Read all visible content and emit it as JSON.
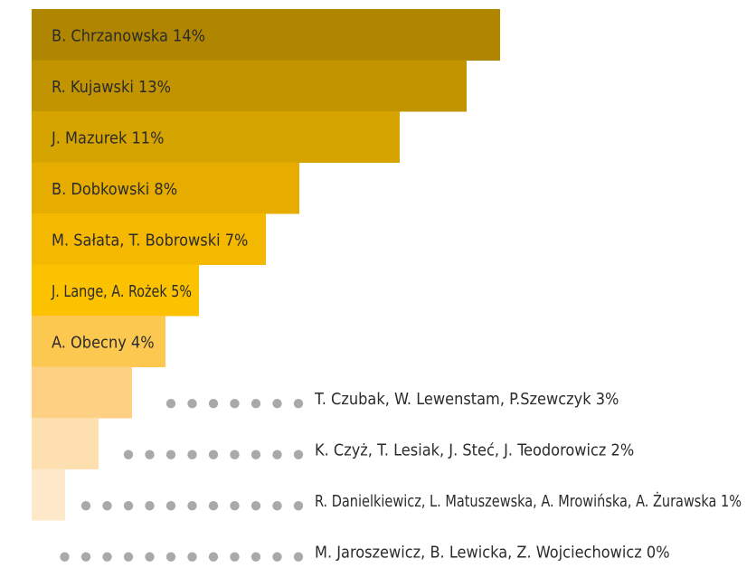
{
  "chart_data": {
    "type": "bar",
    "orientation": "horizontal",
    "title": "",
    "xlabel": "",
    "ylabel": "",
    "xlim": [
      0,
      14
    ],
    "grid": false,
    "legend": "none",
    "categories": [
      "B. Chrzanowska",
      "R. Kujawski",
      "J. Mazurek",
      "B. Dobkowski",
      "M. Sałata, T. Bobrowski",
      "J. Lange, A. Rożek",
      "A. Obecny",
      "T. Czubak, W. Lewenstam, P.Szewczyk",
      "K. Czyż, T. Lesiak, J. Steć, J. Teodorowicz",
      "R. Danielkiewicz, L. Matuszewska, A. Mrowińska, A. Żurawska",
      "M. Jaroszewicz, B. Lewicka, Z. Wojciechowicz"
    ],
    "values": [
      14,
      13,
      11,
      8,
      7,
      5,
      4,
      3,
      2,
      1,
      0
    ],
    "value_labels": [
      "14%",
      "13%",
      "11%",
      "8%",
      "7%",
      "5%",
      "4%",
      "3%",
      "2%",
      "1%",
      "0%"
    ],
    "colors": [
      "#b08600",
      "#c29400",
      "#d6a400",
      "#e6ad00",
      "#f5b800",
      "#fcc200",
      "#fdc850",
      "#fdd083",
      "#fee0b0",
      "#feeacb",
      "#ffffff"
    ],
    "dot_color": "#a9a9a9"
  }
}
